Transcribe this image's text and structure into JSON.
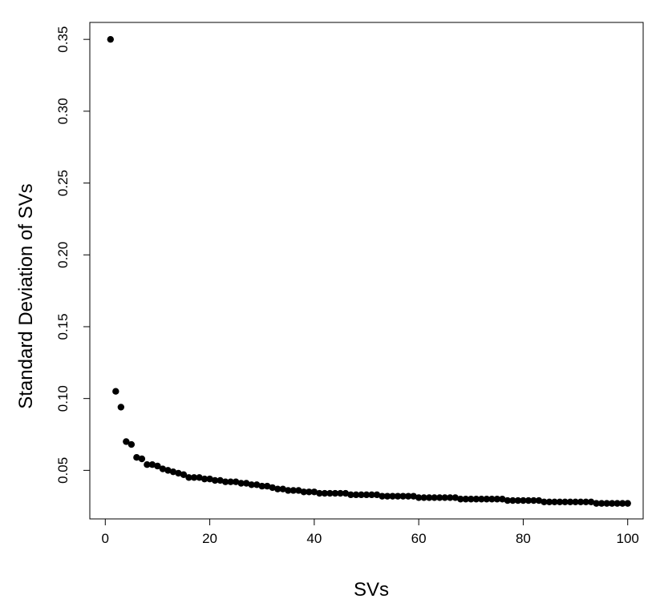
{
  "chart_data": {
    "type": "scatter",
    "title": "",
    "xlabel": "SVs",
    "ylabel": "Standard Deviation of SVs",
    "xlim": [
      -2.96,
      102.96
    ],
    "ylim": [
      0.0162,
      0.3618
    ],
    "x_ticks": [
      0,
      20,
      40,
      60,
      80,
      100
    ],
    "x_tick_labels": [
      "0",
      "20",
      "40",
      "60",
      "80",
      "100"
    ],
    "y_ticks": [
      0.05,
      0.1,
      0.15,
      0.2,
      0.25,
      0.3,
      0.35
    ],
    "y_tick_labels": [
      "0.05",
      "0.10",
      "0.15",
      "0.20",
      "0.25",
      "0.30",
      "0.35"
    ],
    "grid": false,
    "legend": "none",
    "point_color": "#000000",
    "series": [
      {
        "x": [
          1,
          2,
          3,
          4,
          5,
          6,
          7,
          8,
          9,
          10,
          11,
          12,
          13,
          14,
          15,
          16,
          17,
          18,
          19,
          20,
          21,
          22,
          23,
          24,
          25,
          26,
          27,
          28,
          29,
          30,
          31,
          32,
          33,
          34,
          35,
          36,
          37,
          38,
          39,
          40,
          41,
          42,
          43,
          44,
          45,
          46,
          47,
          48,
          49,
          50,
          51,
          52,
          53,
          54,
          55,
          56,
          57,
          58,
          59,
          60,
          61,
          62,
          63,
          64,
          65,
          66,
          67,
          68,
          69,
          70,
          71,
          72,
          73,
          74,
          75,
          76,
          77,
          78,
          79,
          80,
          81,
          82,
          83,
          84,
          85,
          86,
          87,
          88,
          89,
          90,
          91,
          92,
          93,
          94,
          95,
          96,
          97,
          98,
          99,
          100
        ],
        "y": [
          0.35,
          0.105,
          0.094,
          0.07,
          0.068,
          0.059,
          0.058,
          0.054,
          0.054,
          0.053,
          0.051,
          0.05,
          0.049,
          0.048,
          0.047,
          0.045,
          0.045,
          0.045,
          0.044,
          0.044,
          0.043,
          0.043,
          0.042,
          0.042,
          0.042,
          0.041,
          0.041,
          0.04,
          0.04,
          0.039,
          0.039,
          0.038,
          0.037,
          0.037,
          0.036,
          0.036,
          0.036,
          0.035,
          0.035,
          0.035,
          0.034,
          0.034,
          0.034,
          0.034,
          0.034,
          0.034,
          0.033,
          0.033,
          0.033,
          0.033,
          0.033,
          0.033,
          0.032,
          0.032,
          0.032,
          0.032,
          0.032,
          0.032,
          0.032,
          0.031,
          0.031,
          0.031,
          0.031,
          0.031,
          0.031,
          0.031,
          0.031,
          0.03,
          0.03,
          0.03,
          0.03,
          0.03,
          0.03,
          0.03,
          0.03,
          0.03,
          0.029,
          0.029,
          0.029,
          0.029,
          0.029,
          0.029,
          0.029,
          0.028,
          0.028,
          0.028,
          0.028,
          0.028,
          0.028,
          0.028,
          0.028,
          0.028,
          0.028,
          0.027,
          0.027,
          0.027,
          0.027,
          0.027,
          0.027,
          0.027
        ]
      }
    ]
  }
}
